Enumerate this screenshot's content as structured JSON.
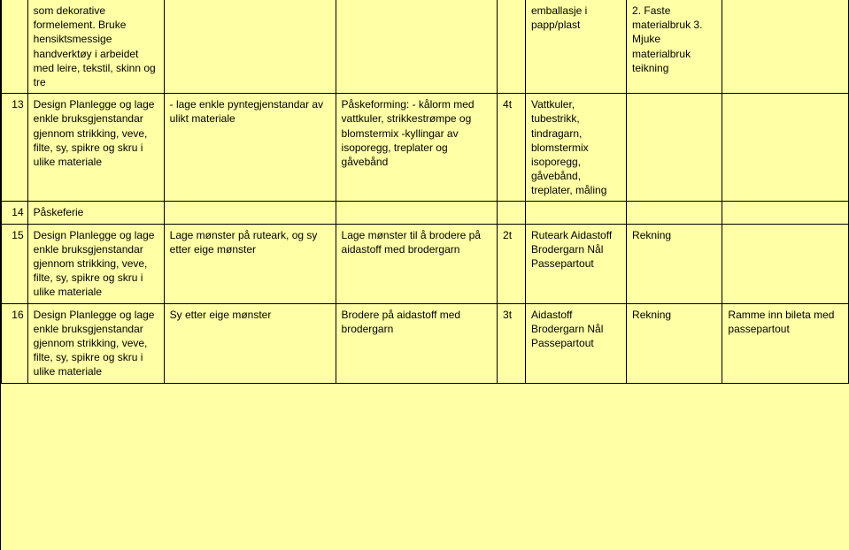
{
  "rows": [
    {
      "num": "",
      "a": "som dekorative formelement. Bruke hensiktsmessige handverktøy i arbeidet med leire, tekstil, skinn og tre",
      "b": "",
      "c": "",
      "d": "",
      "e": "emballasje i papp/plast",
      "f": "2. Faste materialbruk 3. Mjuke materialbruk teikning",
      "g": ""
    },
    {
      "num": "13",
      "a": "Design Planlegge og lage enkle bruksgjenstandar gjennom strikking, veve, filte, sy, spikre og skru i ulike materiale",
      "b": "- lage enkle pyntegjenstandar av ulikt materiale",
      "c": "Påskeforming: - kålorm med vattkuler, strikkestrømpe og blomstermix -kyllingar av isoporegg, treplater og gåvebånd",
      "d": "4t",
      "e": "Vattkuler, tubestrikk, tindragarn, blomstermix isoporegg, gåvebånd, treplater, måling",
      "f": "",
      "g": ""
    },
    {
      "num": "14",
      "a": "Påskeferie",
      "b": "",
      "c": "",
      "d": "",
      "e": "",
      "f": "",
      "g": ""
    },
    {
      "num": "15",
      "a": "Design Planlegge og lage enkle bruksgjenstandar gjennom strikking, veve, filte, sy, spikre og skru i ulike materiale",
      "b": "Lage mønster på ruteark, og sy etter eige mønster",
      "c": "Lage mønster til å brodere på  aidastoff med brodergarn",
      "d": "2t",
      "e": " Ruteark Aidastoff Brodergarn Nål Passepartout",
      "f": "Rekning",
      "g": ""
    },
    {
      "num": "16",
      "a": "Design Planlegge og lage enkle bruksgjenstandar gjennom strikking, veve, filte, sy, spikre og skru i ulike materiale",
      "b": " Sy etter eige mønster",
      "c": "Brodere på  aidastoff med brodergarn",
      "d": "3t",
      "e": "Aidastoff Brodergarn Nål Passepartout",
      "f": "Rekning",
      "g": "Ramme inn bileta med passepartout"
    }
  ]
}
